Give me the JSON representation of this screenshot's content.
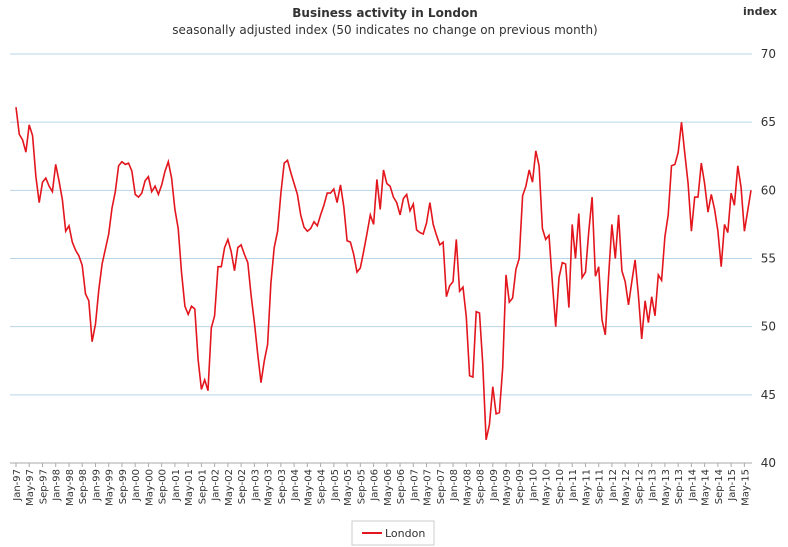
{
  "chart_data": {
    "type": "line",
    "title": "Business activity in London",
    "subtitle": "seasonally adjusted index (50 indicates no change on previous month)",
    "y_axis_label": "index",
    "categories": [
      "Jan-97",
      null,
      null,
      null,
      "May-97",
      null,
      null,
      null,
      "Sep-97",
      null,
      null,
      null,
      "Jan-98",
      null,
      null,
      null,
      "May-98",
      null,
      null,
      null,
      "Sep-98",
      null,
      null,
      null,
      "Jan-99",
      null,
      null,
      null,
      "May-99",
      null,
      null,
      null,
      "Sep-99",
      null,
      null,
      null,
      "Jan-00",
      null,
      null,
      null,
      "May-00",
      null,
      null,
      null,
      "Sep-00",
      null,
      null,
      null,
      "Jan-01",
      null,
      null,
      null,
      "May-01",
      null,
      null,
      null,
      "Sep-01",
      null,
      null,
      null,
      "Jan-02",
      null,
      null,
      null,
      "May-02",
      null,
      null,
      null,
      "Sep-02",
      null,
      null,
      null,
      "Jan-03",
      null,
      null,
      null,
      "May-03",
      null,
      null,
      null,
      "Sep-03",
      null,
      null,
      null,
      "Jan-04",
      null,
      null,
      null,
      "May-04",
      null,
      null,
      null,
      "Sep-04",
      null,
      null,
      null,
      "Jan-05",
      null,
      null,
      null,
      "May-05",
      null,
      null,
      null,
      "Sep-05",
      null,
      null,
      null,
      "Jan-06",
      null,
      null,
      null,
      "May-06",
      null,
      null,
      null,
      "Sep-06",
      null,
      null,
      null,
      "Jan-07",
      null,
      null,
      null,
      "May-07",
      null,
      null,
      null,
      "Sep-07",
      null,
      null,
      null,
      "Jan-08",
      null,
      null,
      null,
      "May-08",
      null,
      null,
      null,
      "Sep-08",
      null,
      null,
      null,
      "Jan-09",
      null,
      null,
      null,
      "May-09",
      null,
      null,
      null,
      "Sep-09",
      null,
      null,
      null,
      "Jan-10",
      null,
      null,
      null,
      "May-10",
      null,
      null,
      null,
      "Sep-10",
      null,
      null,
      null,
      "Jan-11",
      null,
      null,
      null,
      "May-11",
      null,
      null,
      null,
      "Sep-11",
      null,
      null,
      null,
      "Jan-12",
      null,
      null,
      null,
      "May-12",
      null,
      null,
      null,
      "Sep-12",
      null,
      null,
      null,
      "Jan-13",
      null,
      null,
      null,
      "May-13",
      null,
      null,
      null,
      "Sep-13",
      null,
      null,
      null,
      "Jan-14",
      null,
      null,
      null,
      "May-14",
      null,
      null,
      null,
      "Sep-14",
      null,
      null,
      null,
      "Jan-15",
      null,
      null,
      null,
      "May-15",
      null,
      null
    ],
    "series": [
      {
        "name": "London",
        "color": "#e3161d",
        "values": [
          66.1,
          64.1,
          63.7,
          62.8,
          64.8,
          64.0,
          61.0,
          59.1,
          60.6,
          60.9,
          60.3,
          59.9,
          61.9,
          60.7,
          59.3,
          57.0,
          57.4,
          56.2,
          55.6,
          55.2,
          54.5,
          52.4,
          51.9,
          48.9,
          50.2,
          52.7,
          54.6,
          55.7,
          56.8,
          58.7,
          59.9,
          61.8,
          62.1,
          61.9,
          62.0,
          61.4,
          59.7,
          59.5,
          59.8,
          60.7,
          61.0,
          59.9,
          60.3,
          59.7,
          60.4,
          61.4,
          62.1,
          60.9,
          58.6,
          57.2,
          54.0,
          51.5,
          50.9,
          51.5,
          51.3,
          47.6,
          45.4,
          46.1,
          45.3,
          49.9,
          50.8,
          54.4,
          54.4,
          55.8,
          56.4,
          55.5,
          54.1,
          55.8,
          56.0,
          55.3,
          54.7,
          52.3,
          50.3,
          48.0,
          45.9,
          47.5,
          48.7,
          53.2,
          55.8,
          57.0,
          59.8,
          62.0,
          62.2,
          61.3,
          60.5,
          59.7,
          58.2,
          57.3,
          57.0,
          57.2,
          57.7,
          57.4,
          58.2,
          58.9,
          59.8,
          59.8,
          60.1,
          59.1,
          60.4,
          58.8,
          56.3,
          56.2,
          55.3,
          54.0,
          54.3,
          55.5,
          56.8,
          58.2,
          57.5,
          60.8,
          58.6,
          61.5,
          60.5,
          60.3,
          59.5,
          59.1,
          58.2,
          59.4,
          59.7,
          58.5,
          59.0,
          57.1,
          56.9,
          56.8,
          57.6,
          59.1,
          57.5,
          56.7,
          56.0,
          56.2,
          52.2,
          53.0,
          53.3,
          56.4,
          52.6,
          52.9,
          50.7,
          46.4,
          46.3,
          51.1,
          51.0,
          47.2,
          41.7,
          42.8,
          45.6,
          43.6,
          43.7,
          47.0,
          53.8,
          51.8,
          52.1,
          54.2,
          55.0,
          59.6,
          60.3,
          61.5,
          60.6,
          62.9,
          61.8,
          57.2,
          56.4,
          56.7,
          53.2,
          50.0,
          53.6,
          54.7,
          54.6,
          51.4,
          57.5,
          55.0,
          58.3,
          53.6,
          54.0,
          57.0,
          59.5,
          53.7,
          54.4,
          50.5,
          49.4,
          53.7,
          57.5,
          55.0,
          58.2,
          54.1,
          53.3,
          51.6,
          53.3,
          54.9,
          52.3,
          49.1,
          51.9,
          50.3,
          52.2,
          50.8,
          53.8,
          53.4,
          56.6,
          58.2,
          61.8,
          61.9,
          62.8,
          65.0,
          62.7,
          60.5,
          57.0,
          59.5,
          59.5,
          62.0,
          60.5,
          58.4,
          59.7,
          58.6,
          57.0,
          54.4,
          57.5,
          56.9,
          59.8,
          58.9,
          61.8,
          60.2,
          57.0,
          58.5,
          60.0
        ]
      }
    ],
    "ylim": [
      40,
      70
    ],
    "yticks": [
      40,
      45,
      50,
      55,
      60,
      65,
      70
    ],
    "grid": true
  }
}
